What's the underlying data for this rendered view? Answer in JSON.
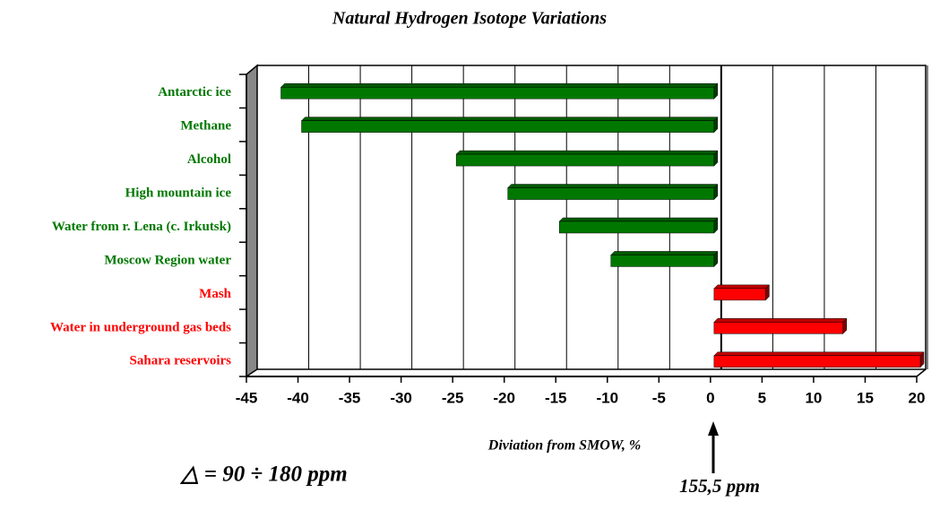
{
  "chart_data": {
    "type": "bar",
    "orientation": "horizontal",
    "title": "Natural  Hydrogen Isotope Variations",
    "x_label": "Diviation from  SMOW, %",
    "annotations": [
      "155,5 ppm",
      "△ = 90 ÷ 180 ppm"
    ],
    "categories": [
      "Antarctic ice",
      "Methane",
      "Alcohol",
      "High mountain ice",
      "Water from r. Lena (c. Irkutsk)",
      "Moscow Region water",
      "Mash",
      "Water in underground gas beds",
      "Sahara reservoirs"
    ],
    "values": [
      -42,
      -40,
      -25,
      -20,
      -15,
      -10,
      5,
      12.5,
      20
    ],
    "colors": [
      "#007800",
      "#007800",
      "#007800",
      "#007800",
      "#007800",
      "#007800",
      "#ff0000",
      "#ff0000",
      "#ff0000"
    ],
    "xlim": [
      -45,
      20
    ],
    "xticks": [
      -45,
      -40,
      -35,
      -30,
      -25,
      -20,
      -15,
      -10,
      -5,
      0,
      5,
      10,
      15,
      20
    ],
    "grid": true
  }
}
